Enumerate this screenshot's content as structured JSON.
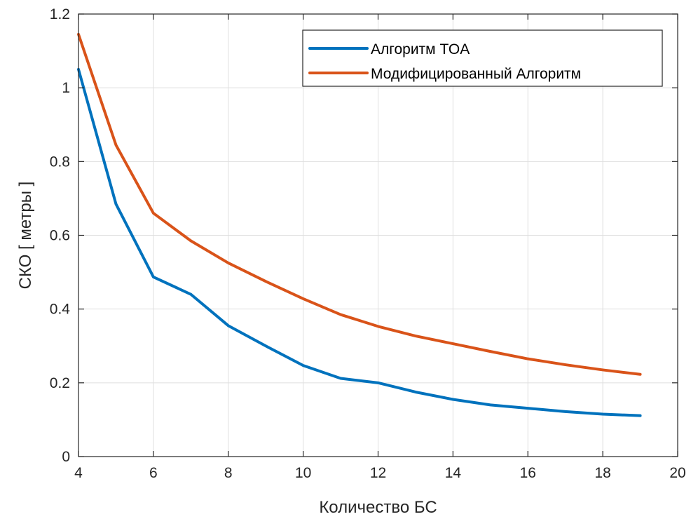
{
  "chart_data": {
    "type": "line",
    "title": "",
    "xlabel": "Количество БС",
    "ylabel": "СКО [ метры ]",
    "xlim": [
      4,
      20
    ],
    "ylim": [
      0,
      1.2
    ],
    "xticks": [
      4,
      6,
      8,
      10,
      12,
      14,
      16,
      18,
      20
    ],
    "yticks": [
      0,
      0.2,
      0.4,
      0.6,
      0.8,
      1,
      1.2
    ],
    "xtick_labels": [
      "4",
      "6",
      "8",
      "10",
      "12",
      "14",
      "16",
      "18",
      "20"
    ],
    "ytick_labels": [
      "0",
      "0.2",
      "0.4",
      "0.6",
      "0.8",
      "1",
      "1.2"
    ],
    "grid": true,
    "legend_position": "top-right",
    "x": [
      4,
      5,
      6,
      7,
      8,
      9,
      10,
      11,
      12,
      13,
      14,
      15,
      16,
      17,
      18,
      19
    ],
    "series": [
      {
        "name": "Алгоритм TOA",
        "color": "#0072BD",
        "values": [
          1.05,
          0.685,
          0.487,
          0.44,
          0.355,
          0.3,
          0.247,
          0.212,
          0.2,
          0.175,
          0.155,
          0.14,
          0.131,
          0.122,
          0.115,
          0.111
        ]
      },
      {
        "name": "Модифицированный Алгоритм",
        "color": "#D95319",
        "values": [
          1.145,
          0.845,
          0.66,
          0.585,
          0.525,
          0.475,
          0.428,
          0.385,
          0.353,
          0.327,
          0.306,
          0.285,
          0.265,
          0.249,
          0.235,
          0.223
        ]
      }
    ]
  }
}
